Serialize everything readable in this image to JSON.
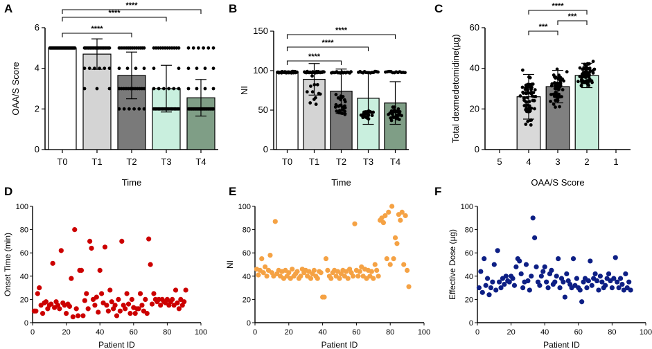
{
  "panel_labels": [
    "A",
    "B",
    "C",
    "D",
    "E",
    "F"
  ],
  "colors": {
    "T0": "#ffffff",
    "T1": "#d4d4d4",
    "T2": "#7a7a7a",
    "T3": "#c9efde",
    "T4": "#7f9e86",
    "bar_c_4": "#d9d9d9",
    "bar_c_3": "#808080",
    "bar_c_2": "#c6eedb",
    "dot": "#000000",
    "d_points": "#cc0000",
    "e_points": "#f5a244",
    "f_points": "#0d1f85"
  },
  "chart_data": [
    {
      "panel": "A",
      "type": "bar",
      "categories": [
        "T0",
        "T1",
        "T2",
        "T3",
        "T4"
      ],
      "values": [
        5.0,
        4.7,
        3.65,
        3.0,
        2.55
      ],
      "errors": [
        0,
        0.75,
        1.15,
        1.15,
        0.9
      ],
      "ylim": [
        0,
        6
      ],
      "yticks": [
        "0",
        "2",
        "4",
        "6"
      ],
      "xlabel": "Time",
      "ylabel": "OAA/S Score",
      "significance": [
        {
          "from": "T0",
          "to": "T2",
          "label": "****"
        },
        {
          "from": "T0",
          "to": "T3",
          "label": "****"
        },
        {
          "from": "T0",
          "to": "T4",
          "label": "****"
        }
      ]
    },
    {
      "panel": "B",
      "type": "bar",
      "categories": [
        "T0",
        "T1",
        "T2",
        "T3",
        "T4"
      ],
      "values": [
        98,
        89,
        74,
        65,
        59
      ],
      "errors": [
        1,
        20,
        28,
        33,
        27
      ],
      "ylim": [
        0,
        150
      ],
      "yticks": [
        "0",
        "50",
        "100",
        "150"
      ],
      "xlabel": "Time",
      "ylabel": "NI",
      "significance": [
        {
          "from": "T0",
          "to": "T2",
          "label": "****"
        },
        {
          "from": "T0",
          "to": "T3",
          "label": "****"
        },
        {
          "from": "T0",
          "to": "T4",
          "label": "****"
        }
      ]
    },
    {
      "panel": "C",
      "type": "bar",
      "categories": [
        "5",
        "4",
        "3",
        "2",
        "1"
      ],
      "values": [
        null,
        26,
        31,
        36.5,
        0
      ],
      "errors": [
        0,
        11,
        8,
        6,
        0
      ],
      "ylim": [
        0,
        60
      ],
      "yticks": [
        "0",
        "20",
        "40",
        "60"
      ],
      "xlabel": "OAA/S Score",
      "ylabel": "Total dexmedetomidine(µg)",
      "significance": [
        {
          "from": "4",
          "to": "3",
          "label": "***"
        },
        {
          "from": "3",
          "to": "2",
          "label": "***"
        },
        {
          "from": "4",
          "to": "2",
          "label": "****"
        }
      ]
    },
    {
      "panel": "D",
      "type": "scatter",
      "xlabel": "Patient ID",
      "ylabel": "Onset Time (min)",
      "xlim": [
        0,
        100
      ],
      "ylim": [
        0,
        100
      ],
      "xticks": [
        "0",
        "20",
        "40",
        "60",
        "80",
        "100"
      ],
      "yticks": [
        "0",
        "20",
        "40",
        "60",
        "80",
        "100"
      ],
      "x": [
        1,
        2,
        3,
        4,
        5,
        6,
        7,
        8,
        9,
        10,
        11,
        12,
        13,
        14,
        15,
        16,
        17,
        18,
        19,
        20,
        21,
        22,
        23,
        24,
        25,
        26,
        27,
        28,
        29,
        30,
        31,
        32,
        33,
        34,
        35,
        36,
        37,
        38,
        39,
        40,
        41,
        42,
        43,
        44,
        45,
        46,
        47,
        48,
        49,
        50,
        51,
        52,
        53,
        54,
        55,
        56,
        57,
        58,
        59,
        60,
        61,
        62,
        63,
        64,
        65,
        66,
        67,
        68,
        69,
        70,
        71,
        72,
        73,
        74,
        75,
        76,
        77,
        78,
        79,
        80,
        81,
        82,
        83,
        84,
        85,
        86,
        87,
        88,
        89,
        90,
        91
      ],
      "y": [
        10,
        10,
        25,
        30,
        15,
        8,
        17,
        18,
        12,
        15,
        16,
        51,
        13,
        18,
        15,
        12,
        62,
        17,
        15,
        8,
        16,
        14,
        38,
        5,
        80,
        12,
        6,
        45,
        45,
        6,
        19,
        25,
        12,
        70,
        64,
        20,
        15,
        22,
        9,
        45,
        25,
        17,
        65,
        15,
        10,
        28,
        18,
        12,
        15,
        6,
        20,
        10,
        70,
        15,
        12,
        25,
        16,
        8,
        20,
        13,
        8,
        12,
        12,
        25,
        15,
        10,
        20,
        8,
        72,
        50,
        16,
        25,
        20,
        18,
        20,
        15,
        20,
        18,
        17,
        20,
        15,
        18,
        20,
        15,
        28,
        17,
        12,
        20,
        15,
        18,
        28
      ]
    },
    {
      "panel": "E",
      "type": "scatter",
      "xlabel": "Patient ID",
      "ylabel": "NI",
      "xlim": [
        0,
        100
      ],
      "ylim": [
        0,
        100
      ],
      "xticks": [
        "0",
        "20",
        "40",
        "60",
        "80",
        "100"
      ],
      "yticks": [
        "0",
        "20",
        "40",
        "60",
        "80",
        "100"
      ],
      "x": [
        1,
        2,
        3,
        4,
        5,
        6,
        7,
        8,
        9,
        10,
        11,
        12,
        13,
        14,
        15,
        16,
        17,
        18,
        19,
        20,
        21,
        22,
        23,
        24,
        25,
        26,
        27,
        28,
        29,
        30,
        31,
        32,
        33,
        34,
        35,
        36,
        37,
        38,
        39,
        40,
        41,
        42,
        43,
        44,
        45,
        46,
        47,
        48,
        49,
        50,
        51,
        52,
        53,
        54,
        55,
        56,
        57,
        58,
        59,
        60,
        61,
        62,
        63,
        64,
        65,
        66,
        67,
        68,
        69,
        70,
        71,
        72,
        73,
        74,
        75,
        76,
        77,
        78,
        79,
        80,
        81,
        82,
        83,
        84,
        85,
        86,
        87,
        88,
        89,
        90,
        91
      ],
      "y": [
        46,
        41,
        45,
        55,
        43,
        48,
        40,
        45,
        58,
        43,
        40,
        87,
        42,
        45,
        40,
        44,
        38,
        45,
        40,
        43,
        38,
        46,
        40,
        42,
        44,
        38,
        40,
        46,
        43,
        45,
        40,
        44,
        38,
        42,
        45,
        40,
        38,
        44,
        43,
        22,
        22,
        55,
        45,
        40,
        38,
        43,
        45,
        40,
        44,
        38,
        42,
        45,
        40,
        44,
        38,
        46,
        43,
        40,
        85,
        45,
        40,
        44,
        48,
        40,
        46,
        38,
        45,
        40,
        44,
        38,
        50,
        45,
        40,
        88,
        90,
        86,
        92,
        55,
        95,
        50,
        100,
        55,
        73,
        68,
        93,
        88,
        95,
        50,
        92,
        45,
        31
      ]
    },
    {
      "panel": "F",
      "type": "scatter",
      "xlabel": "Patient ID",
      "ylabel": "Effective Dose (µg)",
      "xlim": [
        0,
        100
      ],
      "ylim": [
        0,
        100
      ],
      "xticks": [
        "0",
        "20",
        "40",
        "60",
        "80",
        "100"
      ],
      "yticks": [
        "0",
        "20",
        "40",
        "60",
        "80",
        "100"
      ],
      "x": [
        1,
        2,
        3,
        4,
        5,
        6,
        7,
        8,
        9,
        10,
        11,
        12,
        13,
        14,
        15,
        16,
        17,
        18,
        19,
        20,
        21,
        22,
        23,
        24,
        25,
        26,
        27,
        28,
        29,
        30,
        31,
        32,
        33,
        34,
        35,
        36,
        37,
        38,
        39,
        40,
        41,
        42,
        43,
        44,
        45,
        46,
        47,
        48,
        49,
        50,
        51,
        52,
        53,
        54,
        55,
        56,
        57,
        58,
        59,
        60,
        61,
        62,
        63,
        64,
        65,
        66,
        67,
        68,
        69,
        70,
        71,
        72,
        73,
        74,
        75,
        76,
        77,
        78,
        79,
        80,
        81,
        82,
        83,
        84,
        85,
        86,
        87,
        88,
        89,
        90,
        91
      ],
      "y": [
        30,
        44,
        26,
        55,
        32,
        38,
        24,
        30,
        35,
        50,
        28,
        62,
        35,
        30,
        38,
        33,
        40,
        36,
        35,
        40,
        38,
        32,
        48,
        55,
        53,
        42,
        30,
        35,
        50,
        36,
        28,
        40,
        90,
        73,
        48,
        35,
        32,
        40,
        44,
        48,
        35,
        30,
        42,
        45,
        33,
        35,
        40,
        55,
        30,
        38,
        35,
        22,
        42,
        36,
        33,
        30,
        55,
        32,
        38,
        30,
        28,
        18,
        35,
        38,
        30,
        36,
        53,
        32,
        38,
        42,
        36,
        28,
        40,
        35,
        30,
        32,
        38,
        42,
        36,
        30,
        38,
        56,
        35,
        30,
        38,
        33,
        28,
        42,
        30,
        35,
        28
      ]
    }
  ]
}
